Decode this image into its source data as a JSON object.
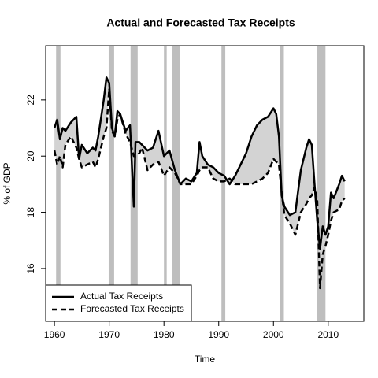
{
  "chart_data": {
    "type": "line",
    "title": "Actual and Forecasted Tax Receipts",
    "x_label": "Time",
    "y_label": "% of GDP",
    "x": [
      1960,
      1960.5,
      1961,
      1961.5,
      1962,
      1963,
      1964,
      1964.5,
      1965,
      1966,
      1967,
      1967.5,
      1968,
      1969,
      1969.5,
      1970,
      1970.5,
      1971,
      1971.5,
      1972,
      1973,
      1973.8,
      1974.5,
      1974.8,
      1975.5,
      1976,
      1977,
      1978,
      1979,
      1980,
      1981,
      1982,
      1983,
      1984,
      1985,
      1986,
      1986.5,
      1987,
      1988,
      1989,
      1990,
      1991,
      1992,
      1993,
      1994,
      1995,
      1996,
      1997,
      1998,
      1999,
      2000,
      2000.5,
      2001,
      2001.5,
      2002,
      2003,
      2004,
      2005,
      2006,
      2006.5,
      2007,
      2007.5,
      2008,
      2008.5,
      2009,
      2009.5,
      2010,
      2010.5,
      2011,
      2012,
      2012.5,
      2013
    ],
    "series": [
      {
        "name": "Actual Tax Receipts",
        "color": "#000000",
        "line_style": "solid",
        "values": [
          21.0,
          21.3,
          20.6,
          21.0,
          20.9,
          21.2,
          21.4,
          19.9,
          20.4,
          20.1,
          20.3,
          20.2,
          20.7,
          22.0,
          22.8,
          22.6,
          21.0,
          20.7,
          21.6,
          21.5,
          20.9,
          21.1,
          18.2,
          20.5,
          20.5,
          20.4,
          20.2,
          20.3,
          20.9,
          20.0,
          20.2,
          19.5,
          19.0,
          19.2,
          19.1,
          19.4,
          20.5,
          20.0,
          19.7,
          19.6,
          19.4,
          19.3,
          19.0,
          19.3,
          19.7,
          20.1,
          20.7,
          21.1,
          21.3,
          21.4,
          21.7,
          21.5,
          20.7,
          18.6,
          18.2,
          17.9,
          18.0,
          19.5,
          20.3,
          20.6,
          20.4,
          19.0,
          17.7,
          16.7,
          17.5,
          17.2,
          17.5,
          18.7,
          18.5,
          19.0,
          19.3,
          19.1
        ]
      },
      {
        "name": "Forecasted Tax Receipts",
        "color": "#000000",
        "line_style": "dashed",
        "values": [
          20.2,
          19.7,
          20.0,
          19.6,
          20.4,
          20.7,
          20.3,
          19.9,
          19.6,
          19.7,
          19.8,
          19.6,
          19.9,
          20.7,
          21.0,
          22.4,
          20.9,
          20.7,
          21.3,
          21.5,
          20.8,
          20.5,
          20.0,
          20.0,
          20.1,
          20.3,
          19.5,
          19.7,
          19.8,
          19.3,
          19.6,
          19.4,
          19.0,
          19.0,
          19.0,
          19.3,
          19.5,
          19.6,
          19.6,
          19.2,
          19.1,
          19.1,
          19.2,
          19.0,
          19.0,
          19.0,
          19.0,
          19.1,
          19.2,
          19.4,
          19.9,
          19.8,
          19.7,
          18.7,
          17.9,
          17.6,
          17.2,
          18.0,
          18.3,
          18.5,
          18.6,
          18.9,
          18.4,
          15.3,
          16.5,
          16.8,
          17.2,
          17.7,
          18.0,
          18.1,
          18.4,
          18.5
        ]
      }
    ],
    "gap_fill_color": "#d3d3d3",
    "recessions": [
      [
        1960.3,
        1961.1
      ],
      [
        1969.9,
        1970.9
      ],
      [
        1973.9,
        1975.2
      ],
      [
        1980.0,
        1980.5
      ],
      [
        1981.5,
        1982.9
      ],
      [
        1990.5,
        1991.2
      ],
      [
        2001.2,
        2001.9
      ],
      [
        2007.9,
        2009.5
      ]
    ],
    "recession_color": "#bebebe",
    "xlim": [
      1958.4,
      2016.5
    ],
    "xticks": [
      1960,
      1970,
      1980,
      1990,
      2000,
      2010
    ],
    "ylim": [
      14.12,
      23.93
    ],
    "yticks": [
      16,
      18,
      20,
      22
    ],
    "legend": "bottom-left"
  }
}
